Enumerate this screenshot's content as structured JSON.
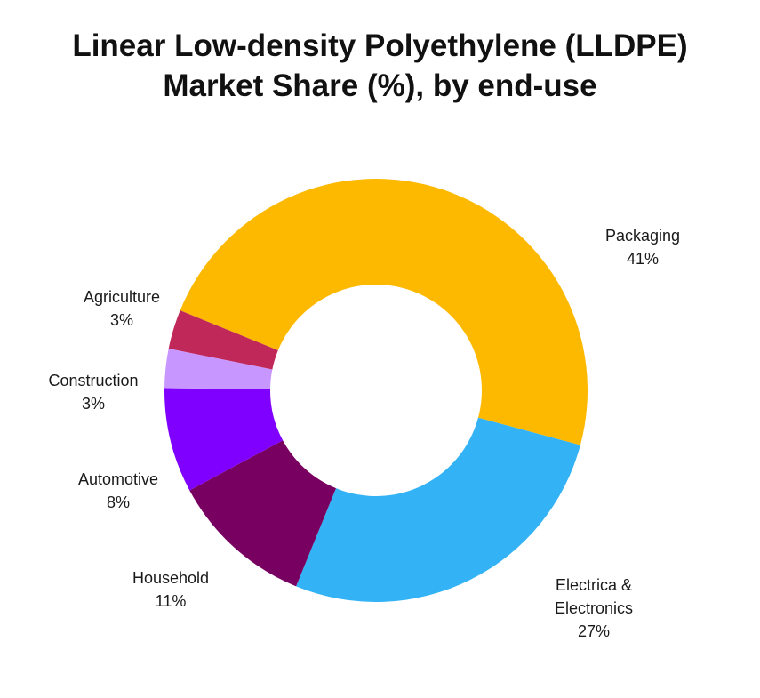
{
  "chart_data": {
    "type": "pie",
    "variant": "donut",
    "title": "Linear Low-density Polyethylene (LLDPE)",
    "subtitle": "Market Share (%), by end-use",
    "slices": [
      {
        "label": "Packaging",
        "value": 41,
        "value_label": "41%",
        "color": "#FDB900"
      },
      {
        "label": "Electrica & Electronics",
        "label_lines": [
          "Electrica &",
          "Electronics"
        ],
        "value": 27,
        "value_label": "27%",
        "color": "#33B3F5"
      },
      {
        "label": "Household",
        "value": 11,
        "value_label": "11%",
        "color": "#780060"
      },
      {
        "label": "Automotive",
        "value": 8,
        "value_label": "8%",
        "color": "#8000FF"
      },
      {
        "label": "Construction",
        "value": 3,
        "value_label": "3%",
        "color": "#C896FF"
      },
      {
        "label": "Agriculture",
        "value": 3,
        "value_label": "3%",
        "color": "#C0285A"
      }
    ]
  }
}
